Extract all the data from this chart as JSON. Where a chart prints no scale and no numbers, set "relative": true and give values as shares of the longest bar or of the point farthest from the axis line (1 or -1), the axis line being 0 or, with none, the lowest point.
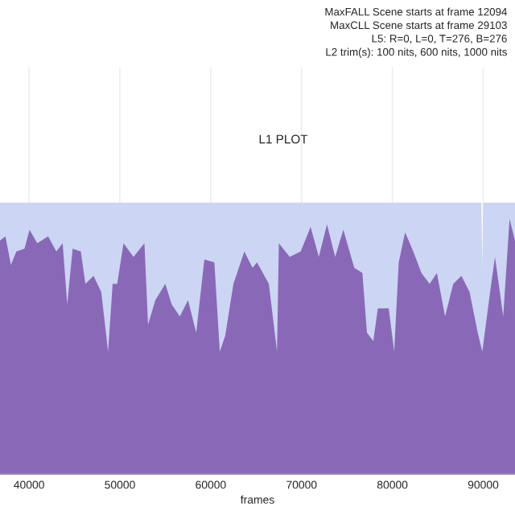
{
  "chart_data": {
    "type": "area",
    "title": "L1 PLOT",
    "xlabel": "frames",
    "relative": true,
    "annotations": [
      "MaxFALL Scene starts at frame 12094",
      "MaxCLL Scene starts at frame 29103",
      "L5: R=0, L=0, T=276, B=276",
      "L2 trim(s): 100 nits, 600 nits, 1000 nits"
    ],
    "xlim": [
      36800,
      93500
    ],
    "xticks": [
      40000,
      50000,
      60000,
      70000,
      80000,
      90000
    ],
    "grid": "x",
    "legend": false,
    "series": [
      {
        "color": "#cdd5f5",
        "x": [
          36800,
          89800,
          89900,
          90000,
          93500
        ],
        "values": [
          1,
          1,
          0.76,
          1,
          1
        ]
      },
      {
        "color": "#8a68b8",
        "x": [
          36800,
          37400,
          38000,
          38600,
          39500,
          40050,
          40900,
          42100,
          43000,
          43700,
          44200,
          44800,
          45700,
          46200,
          47100,
          47950,
          48700,
          49200,
          49700,
          50400,
          51500,
          52700,
          53100,
          53900,
          55000,
          55700,
          56600,
          57500,
          58400,
          59300,
          60400,
          61000,
          61600,
          62500,
          63700,
          64600,
          65100,
          66400,
          67300,
          67500,
          68700,
          69900,
          71000,
          71900,
          72800,
          73700,
          74600,
          75800,
          76700,
          77200,
          77900,
          78400,
          79600,
          80200,
          80700,
          81400,
          82300,
          83200,
          84100,
          84900,
          85800,
          86700,
          87600,
          88500,
          89400,
          89900,
          90800,
          91300,
          92200,
          92900,
          93500
        ],
        "values": [
          0.86,
          0.875,
          0.77,
          0.82,
          0.83,
          0.9,
          0.85,
          0.875,
          0.82,
          0.85,
          0.625,
          0.83,
          0.82,
          0.7,
          0.73,
          0.67,
          0.45,
          0.7,
          0.7,
          0.85,
          0.8,
          0.85,
          0.55,
          0.64,
          0.7,
          0.625,
          0.58,
          0.64,
          0.52,
          0.79,
          0.78,
          0.45,
          0.51,
          0.7,
          0.82,
          0.76,
          0.78,
          0.7,
          0.45,
          0.85,
          0.8,
          0.82,
          0.91,
          0.8,
          0.92,
          0.8,
          0.9,
          0.76,
          0.74,
          0.52,
          0.49,
          0.61,
          0.61,
          0.45,
          0.78,
          0.89,
          0.82,
          0.74,
          0.7,
          0.74,
          0.58,
          0.7,
          0.73,
          0.67,
          0.52,
          0.45,
          0.68,
          0.8,
          0.58,
          0.94,
          0.86
        ]
      }
    ]
  }
}
